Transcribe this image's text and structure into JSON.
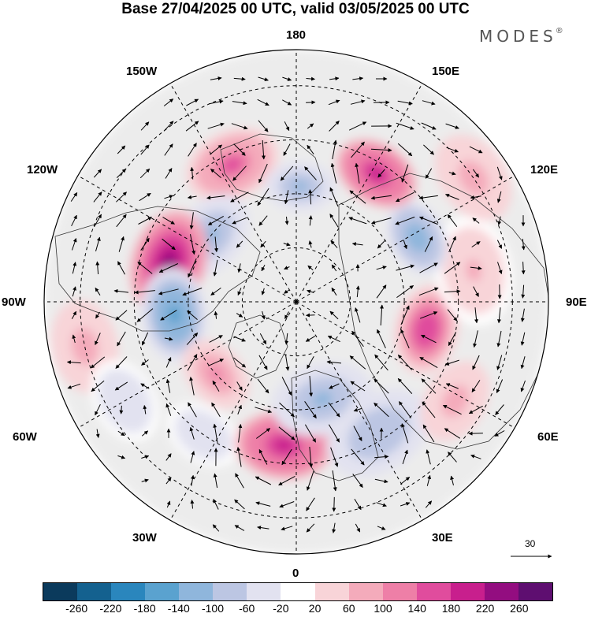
{
  "title": "Base 27/04/2025 00 UTC, valid 03/05/2025 00 UTC",
  "logo": {
    "text": "MODES",
    "mark": "®"
  },
  "longitude_labels": {
    "top": "180",
    "bottom": "0",
    "left": "90W",
    "right": "90E",
    "upper_left_1": "150W",
    "upper_left_2": "120W",
    "upper_right_1": "150E",
    "upper_right_2": "120E",
    "lower_left_1": "60W",
    "lower_left_2": "30W",
    "lower_right_1": "60E",
    "lower_right_2": "30E"
  },
  "reference_vector": {
    "label": "30"
  },
  "colorbar": {
    "colors": [
      "#0b3a5c",
      "#14618f",
      "#2a86bd",
      "#5aa2cf",
      "#8fb6dc",
      "#bcc6e3",
      "#e2e2f0",
      "#ffffff",
      "#f8d4d8",
      "#f4abbb",
      "#ee7fa7",
      "#e04c9d",
      "#c81f8d",
      "#930d80",
      "#5e0e70"
    ],
    "ticks": [
      "-260",
      "-220",
      "-180",
      "-140",
      "-100",
      "-60",
      "-20",
      "20",
      "60",
      "100",
      "140",
      "180",
      "220",
      "260"
    ]
  },
  "anomaly_centers": [
    {
      "lon": -155,
      "lat": 48,
      "value": 150,
      "r": 62
    },
    {
      "lon": -128,
      "lat": 60,
      "value": -120,
      "r": 58
    },
    {
      "lon": -107,
      "lat": 53,
      "value": 230,
      "r": 68
    },
    {
      "lon": -84,
      "lat": 56,
      "value": -160,
      "r": 60
    },
    {
      "lon": -78,
      "lat": 30,
      "value": 80,
      "r": 60
    },
    {
      "lon": -60,
      "lat": 35,
      "value": -60,
      "r": 55
    },
    {
      "lon": -48,
      "lat": 60,
      "value": 120,
      "r": 50
    },
    {
      "lon": -35,
      "lat": 45,
      "value": -50,
      "r": 50
    },
    {
      "lon": -5,
      "lat": 50,
      "value": 210,
      "r": 62
    },
    {
      "lon": 15,
      "lat": 62,
      "value": -110,
      "r": 65
    },
    {
      "lon": 32,
      "lat": 47,
      "value": -100,
      "r": 70
    },
    {
      "lon": 58,
      "lat": 38,
      "value": 90,
      "r": 55
    },
    {
      "lon": 78,
      "lat": 53,
      "value": 170,
      "r": 58
    },
    {
      "lon": 100,
      "lat": 40,
      "value": 60,
      "r": 70
    },
    {
      "lon": 118,
      "lat": 52,
      "value": -140,
      "r": 50
    },
    {
      "lon": 148,
      "lat": 48,
      "value": 210,
      "r": 55
    },
    {
      "lon": 178,
      "lat": 58,
      "value": -120,
      "r": 45
    },
    {
      "lon": 125,
      "lat": 30,
      "value": 80,
      "r": 60
    }
  ]
}
